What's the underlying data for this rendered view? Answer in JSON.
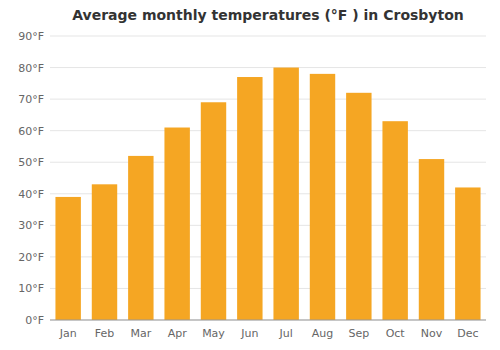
{
  "chart_data": {
    "type": "bar",
    "title": "Average monthly temperatures (°F ) in Crosbyton",
    "categories": [
      "Jan",
      "Feb",
      "Mar",
      "Apr",
      "May",
      "Jun",
      "Jul",
      "Aug",
      "Sep",
      "Oct",
      "Nov",
      "Dec"
    ],
    "values": [
      39,
      43,
      52,
      61,
      69,
      77,
      80,
      78,
      72,
      63,
      51,
      42
    ],
    "color": "#F5A623",
    "ylim": [
      0,
      90
    ],
    "yticks": [
      {
        "value": 0,
        "label": "0°F"
      },
      {
        "value": 10,
        "label": "10°F"
      },
      {
        "value": 20,
        "label": "20°F"
      },
      {
        "value": 30,
        "label": "30°F"
      },
      {
        "value": 40,
        "label": "40°F"
      },
      {
        "value": 50,
        "label": "50°F"
      },
      {
        "value": 60,
        "label": "60°F"
      },
      {
        "value": 70,
        "label": "70°F"
      },
      {
        "value": 80,
        "label": "80°F"
      },
      {
        "value": 90,
        "label": "90°F"
      }
    ],
    "grid": true
  }
}
